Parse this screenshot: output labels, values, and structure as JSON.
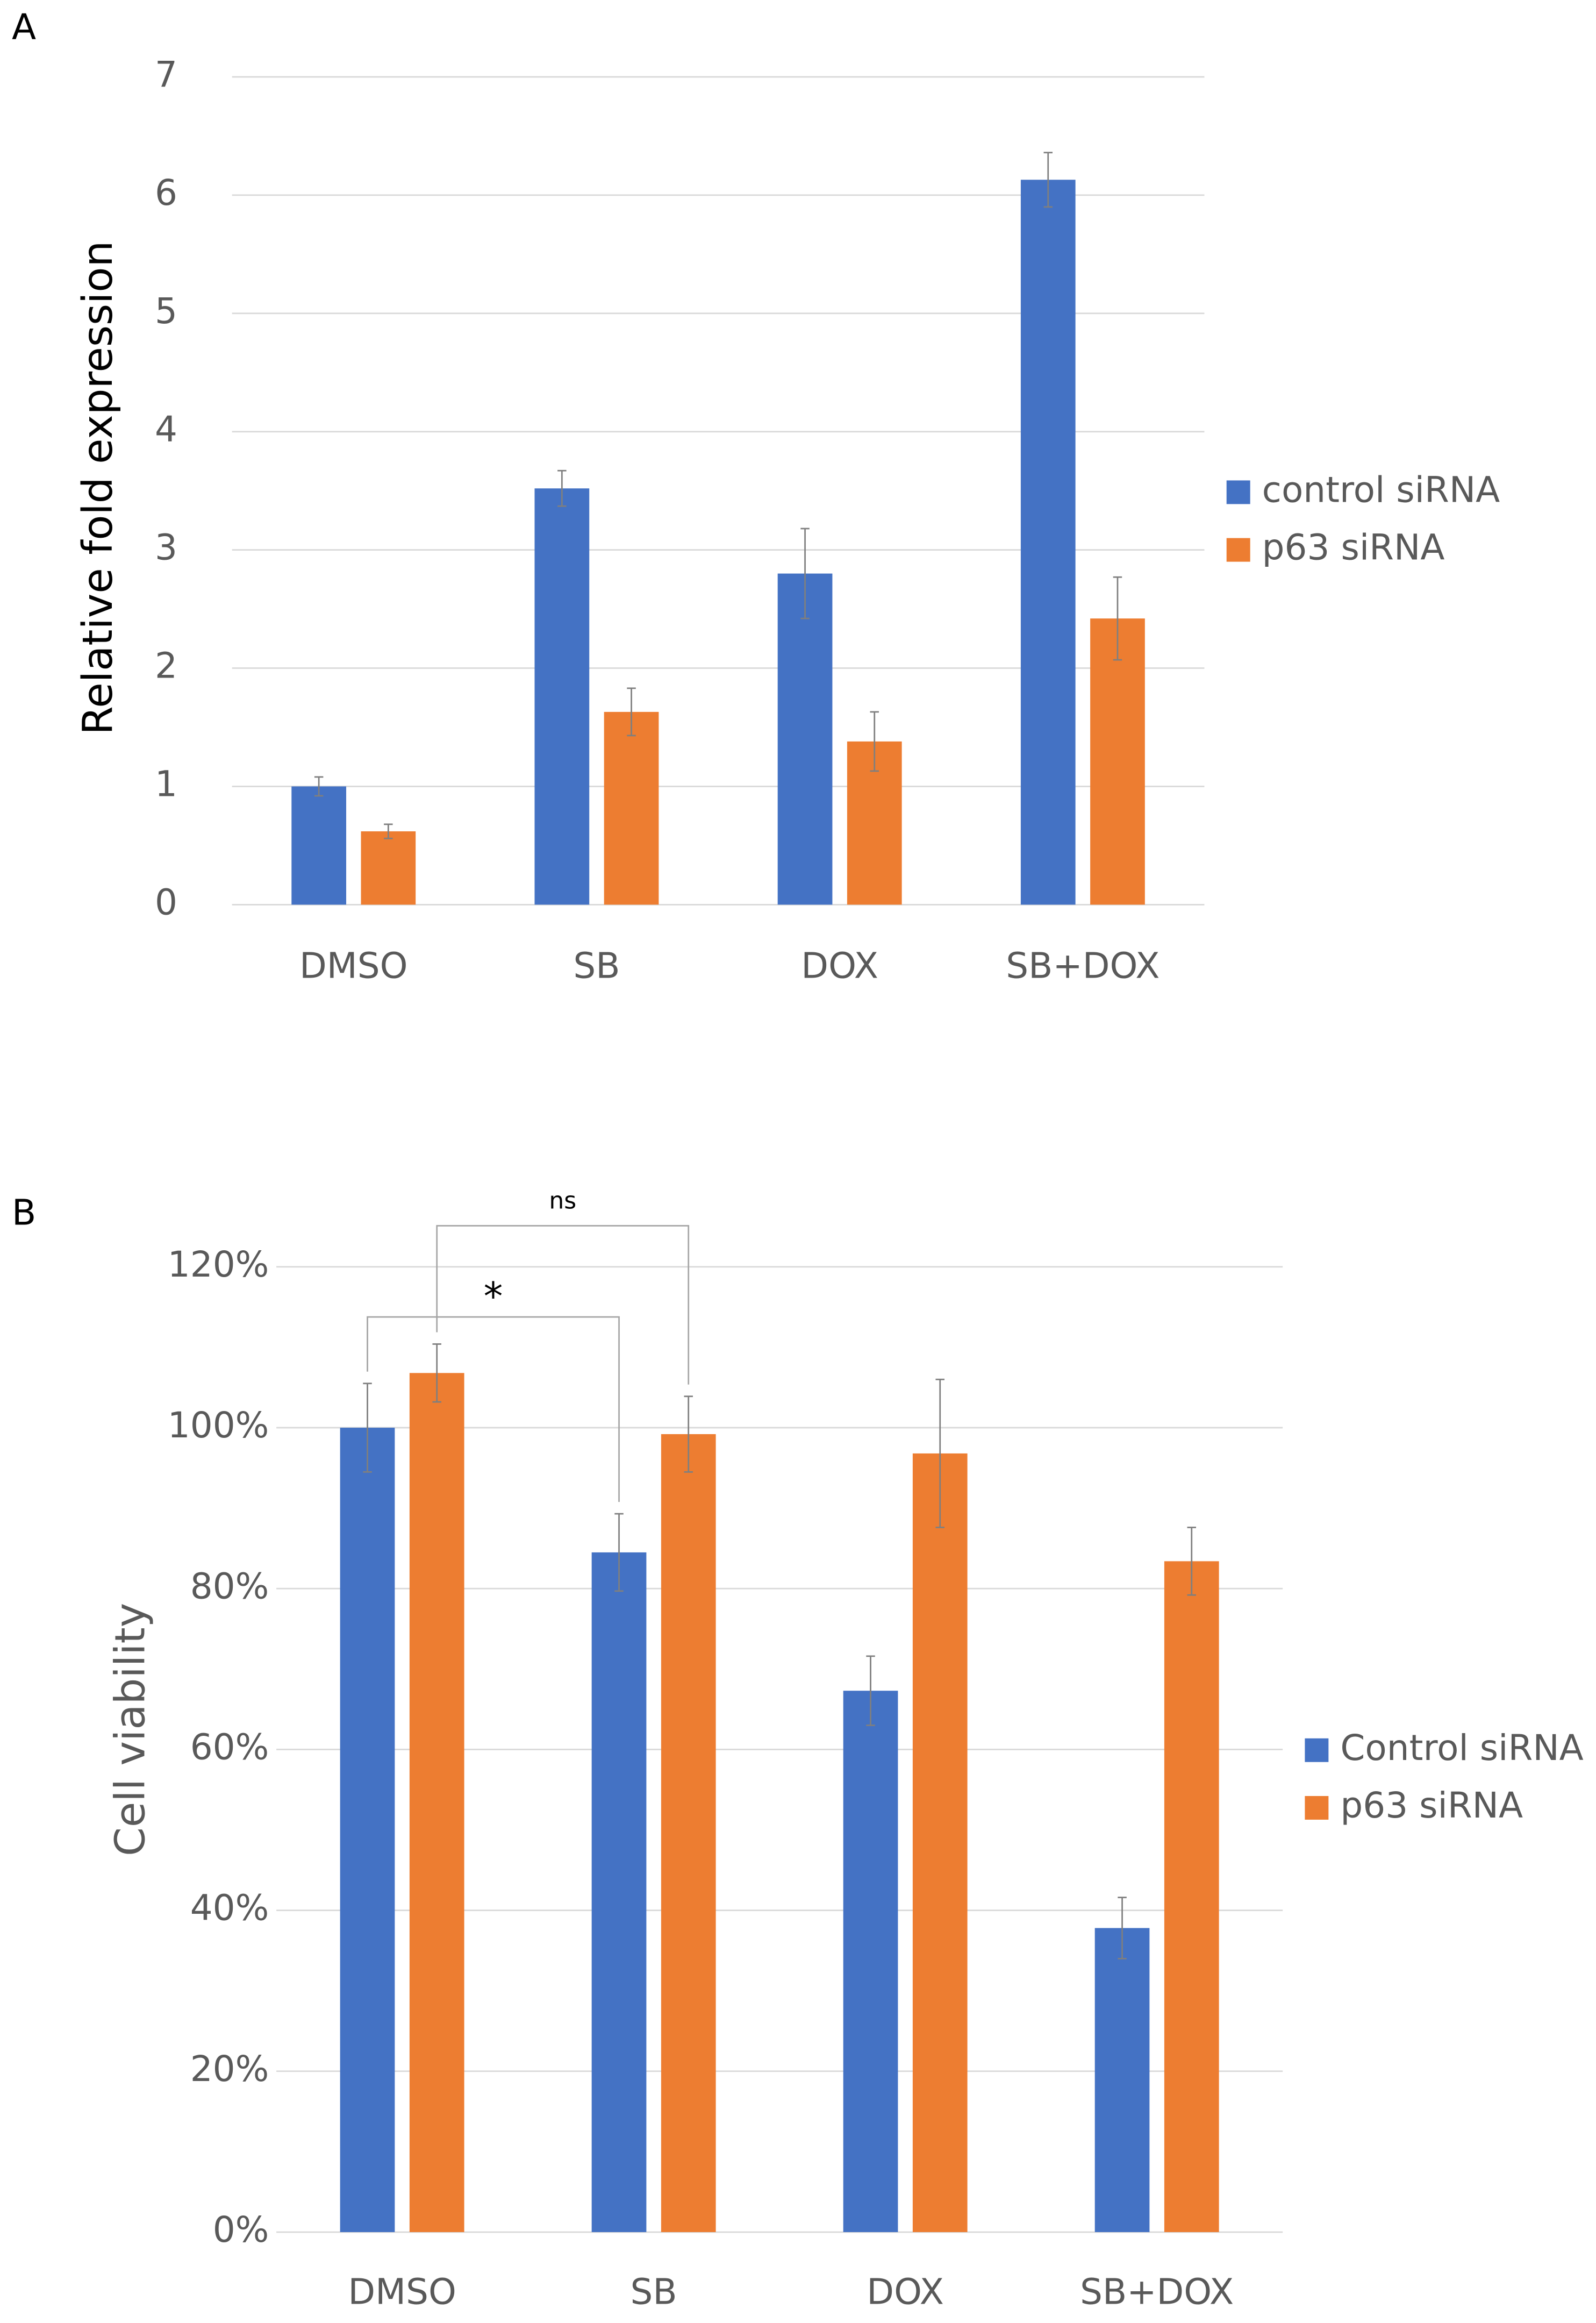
{
  "chart_data": [
    {
      "type": "bar",
      "label": "A",
      "y_label": "Relative fold expression",
      "categories": [
        "DMSO",
        "SB",
        "DOX",
        "SB+DOX"
      ],
      "series": [
        {
          "name": "control siRNA",
          "color": "#4472c4",
          "values": [
            1.0,
            3.52,
            2.8,
            6.13
          ],
          "errors": [
            0.08,
            0.15,
            0.38,
            0.23
          ]
        },
        {
          "name": "p63 siRNA",
          "color": "#ed7d31",
          "values": [
            0.62,
            1.63,
            1.38,
            2.42
          ],
          "errors": [
            0.06,
            0.2,
            0.25,
            0.35
          ]
        }
      ],
      "ylim": [
        0,
        7
      ],
      "yticks": [
        0,
        1,
        2,
        3,
        4,
        5,
        6,
        7
      ],
      "grid": true,
      "legend": "right"
    },
    {
      "type": "bar",
      "label": "B",
      "y_label": "Cell viability",
      "categories": [
        "DMSO",
        "SB",
        "DOX",
        "SB+DOX"
      ],
      "series": [
        {
          "name": "Control siRNA",
          "color": "#4472c4",
          "values": [
            100,
            84.5,
            67.3,
            37.8
          ],
          "errors": [
            5.5,
            4.8,
            4.3,
            3.8
          ]
        },
        {
          "name": "p63 siRNA",
          "color": "#ed7d31",
          "values": [
            106.8,
            99.2,
            96.8,
            83.4
          ],
          "errors": [
            3.6,
            4.7,
            9.2,
            4.2
          ]
        }
      ],
      "ylim": [
        0,
        120
      ],
      "yticks": [
        {
          "value": 0,
          "label": "0%"
        },
        {
          "value": 20,
          "label": "20%"
        },
        {
          "value": 40,
          "label": "40%"
        },
        {
          "value": 60,
          "label": "60%"
        },
        {
          "value": 80,
          "label": "80%"
        },
        {
          "value": 100,
          "label": "100%"
        },
        {
          "value": 120,
          "label": "120%"
        }
      ],
      "annotations": [
        {
          "text": "*"
        },
        {
          "text": "ns"
        }
      ],
      "grid": true,
      "legend": "right"
    }
  ]
}
